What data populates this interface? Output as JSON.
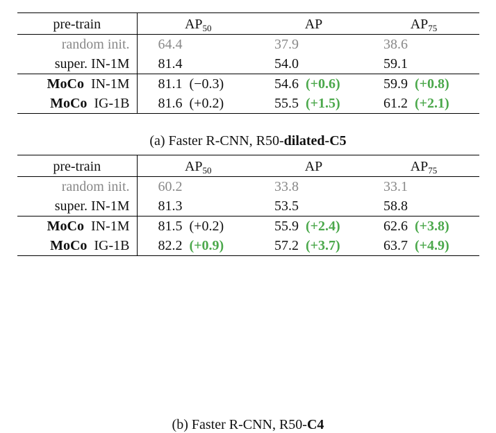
{
  "tables": [
    {
      "id": "a",
      "columns": [
        "pre-train",
        "AP",
        "AP",
        "AP"
      ],
      "column_subscripts": [
        "",
        "50",
        "",
        "75"
      ],
      "rows": [
        {
          "method_bold": "",
          "method_rest": "random init.",
          "style": "gray",
          "ap50": "64.4",
          "ap50_delta": "",
          "ap50_delta_style": "",
          "ap": "37.9",
          "ap_delta": "",
          "ap_delta_style": "",
          "ap75": "38.6",
          "ap75_delta": "",
          "ap75_delta_style": ""
        },
        {
          "method_bold": "",
          "method_rest": "super. IN-1M",
          "style": "normal",
          "ap50": "81.4",
          "ap50_delta": "",
          "ap50_delta_style": "",
          "ap": "54.0",
          "ap_delta": "",
          "ap_delta_style": "",
          "ap75": "59.1",
          "ap75_delta": "",
          "ap75_delta_style": ""
        },
        {
          "method_bold": "MoCo",
          "method_rest": "IN-1M",
          "style": "normal",
          "ap50": "81.1",
          "ap50_delta": "(−0.3)",
          "ap50_delta_style": "plain",
          "ap": "54.6",
          "ap_delta": "(+0.6)",
          "ap_delta_style": "green",
          "ap75": "59.9",
          "ap75_delta": "(+0.8)",
          "ap75_delta_style": "green"
        },
        {
          "method_bold": "MoCo",
          "method_rest": "IG-1B",
          "style": "normal",
          "ap50": "81.6",
          "ap50_delta": "(+0.2)",
          "ap50_delta_style": "plain",
          "ap": "55.5",
          "ap_delta": "(+1.5)",
          "ap_delta_style": "green",
          "ap75": "61.2",
          "ap75_delta": "(+2.1)",
          "ap75_delta_style": "green"
        }
      ],
      "caption_prefix": "(a) Faster R-CNN, R50-",
      "caption_bold": "dilated-C5"
    },
    {
      "id": "b",
      "columns": [
        "pre-train",
        "AP",
        "AP",
        "AP"
      ],
      "column_subscripts": [
        "",
        "50",
        "",
        "75"
      ],
      "rows": [
        {
          "method_bold": "",
          "method_rest": "random init.",
          "style": "gray",
          "ap50": "60.2",
          "ap50_delta": "",
          "ap50_delta_style": "",
          "ap": "33.8",
          "ap_delta": "",
          "ap_delta_style": "",
          "ap75": "33.1",
          "ap75_delta": "",
          "ap75_delta_style": ""
        },
        {
          "method_bold": "",
          "method_rest": "super. IN-1M",
          "style": "normal",
          "ap50": "81.3",
          "ap50_delta": "",
          "ap50_delta_style": "",
          "ap": "53.5",
          "ap_delta": "",
          "ap_delta_style": "",
          "ap75": "58.8",
          "ap75_delta": "",
          "ap75_delta_style": ""
        },
        {
          "method_bold": "MoCo",
          "method_rest": "IN-1M",
          "style": "normal",
          "ap50": "81.5",
          "ap50_delta": "(+0.2)",
          "ap50_delta_style": "plain",
          "ap": "55.9",
          "ap_delta": "(+2.4)",
          "ap_delta_style": "green",
          "ap75": "62.6",
          "ap75_delta": "(+3.8)",
          "ap75_delta_style": "green"
        },
        {
          "method_bold": "MoCo",
          "method_rest": "IG-1B",
          "style": "normal",
          "ap50": "82.2",
          "ap50_delta": "(+0.9)",
          "ap50_delta_style": "green",
          "ap": "57.2",
          "ap_delta": "(+3.7)",
          "ap_delta_style": "green",
          "ap75": "63.7",
          "ap75_delta": "(+4.9)",
          "ap75_delta_style": "green"
        }
      ],
      "caption_prefix": "(b) Faster R-CNN, R50-",
      "caption_bold": "C4"
    }
  ],
  "colors": {
    "gray_text": "#888888",
    "delta_green": "#4ba84b",
    "text": "#111111"
  }
}
